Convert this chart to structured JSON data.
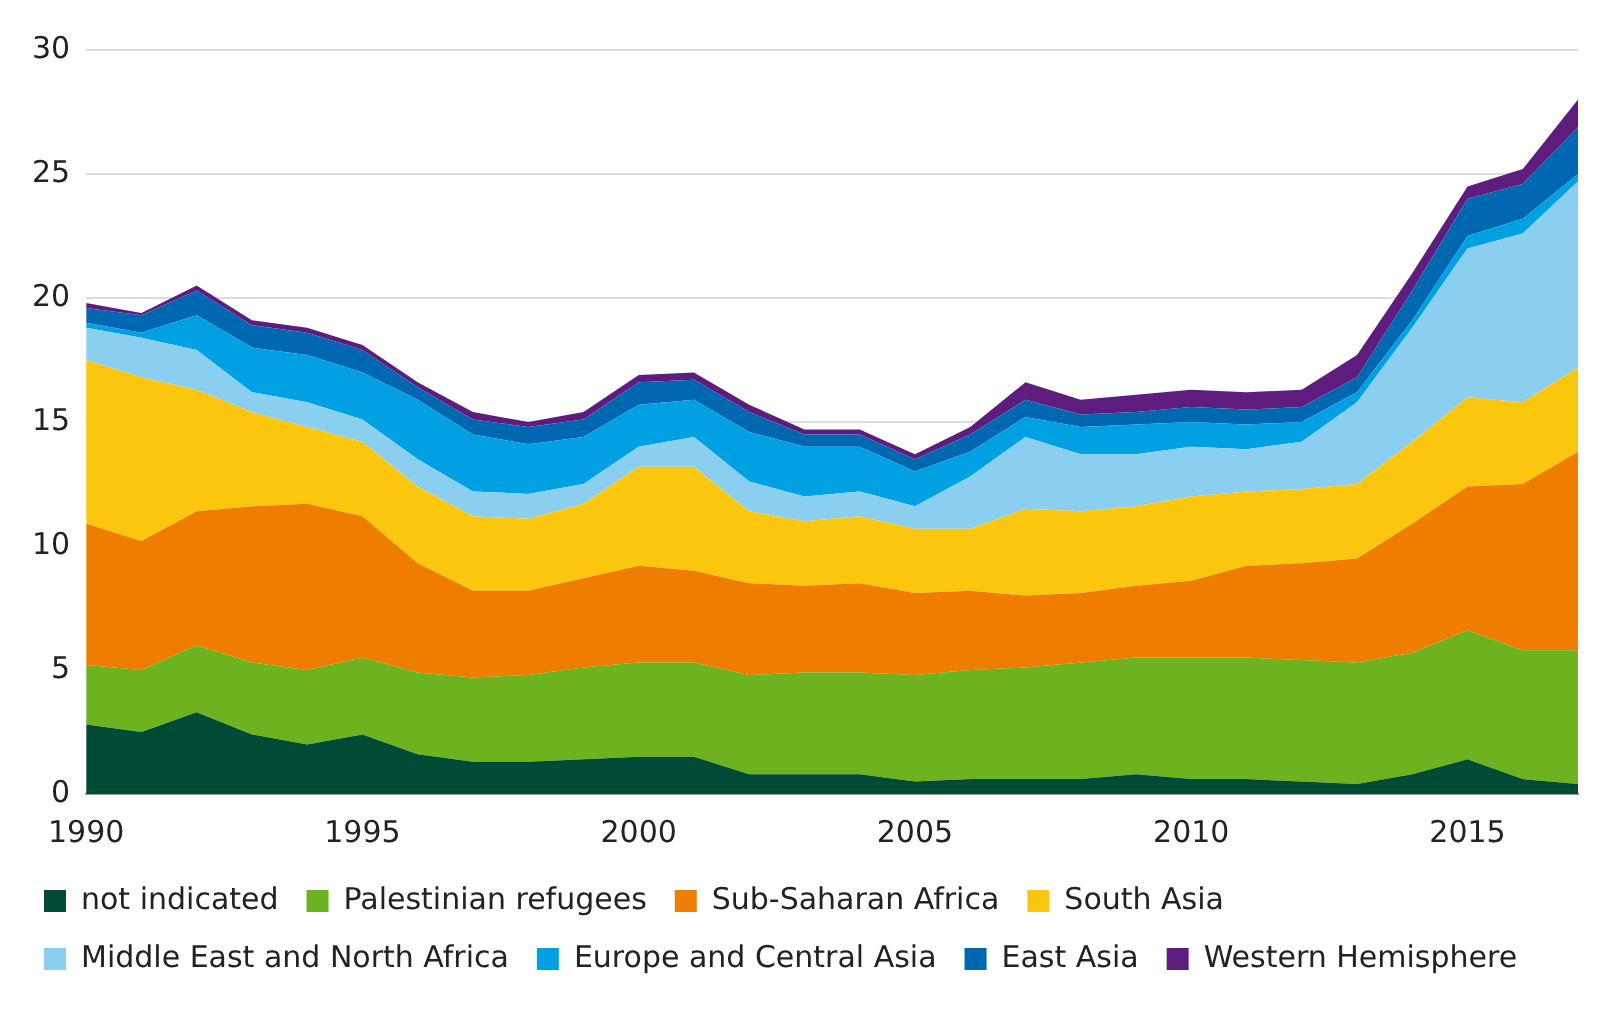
{
  "chart_data": {
    "type": "area",
    "stacked": true,
    "x": [
      1990,
      1991,
      1992,
      1993,
      1994,
      1995,
      1996,
      1997,
      1998,
      1999,
      2000,
      2001,
      2002,
      2003,
      2004,
      2005,
      2006,
      2007,
      2008,
      2009,
      2010,
      2011,
      2012,
      2013,
      2014,
      2015,
      2016,
      2017
    ],
    "series": [
      {
        "name": "not indicated",
        "color": "#004b35",
        "values": [
          2.8,
          2.5,
          3.3,
          2.4,
          2.0,
          2.4,
          1.6,
          1.3,
          1.3,
          1.4,
          1.5,
          1.5,
          0.8,
          0.8,
          0.8,
          0.5,
          0.6,
          0.6,
          0.6,
          0.8,
          0.6,
          0.6,
          0.5,
          0.4,
          0.8,
          1.4,
          0.6,
          0.4
        ]
      },
      {
        "name": "Palestinian refugees",
        "color": "#6db31f",
        "values": [
          2.4,
          2.5,
          2.7,
          2.9,
          3.0,
          3.1,
          3.3,
          3.4,
          3.5,
          3.7,
          3.8,
          3.8,
          4.0,
          4.1,
          4.1,
          4.3,
          4.4,
          4.5,
          4.7,
          4.7,
          4.9,
          4.9,
          4.9,
          4.9,
          4.9,
          5.2,
          5.2,
          5.4
        ]
      },
      {
        "name": "Sub-Saharan Africa",
        "color": "#ef7d00",
        "values": [
          5.7,
          5.2,
          5.4,
          6.3,
          6.7,
          5.7,
          4.4,
          3.5,
          3.4,
          3.6,
          3.9,
          3.7,
          3.7,
          3.5,
          3.6,
          3.3,
          3.2,
          2.9,
          2.8,
          2.9,
          3.1,
          3.7,
          3.9,
          4.2,
          5.2,
          5.8,
          6.7,
          8.0
        ]
      },
      {
        "name": "South Asia",
        "color": "#fbc70e",
        "values": [
          6.6,
          6.6,
          4.9,
          3.8,
          3.1,
          3.0,
          3.1,
          3.0,
          2.9,
          3.0,
          4.0,
          4.2,
          2.9,
          2.6,
          2.7,
          2.6,
          2.5,
          3.5,
          3.3,
          3.2,
          3.4,
          3.0,
          3.0,
          3.0,
          3.3,
          3.6,
          3.3,
          3.4
        ]
      },
      {
        "name": "Middle East and North Africa",
        "color": "#8bcff0",
        "values": [
          1.3,
          1.6,
          1.6,
          0.8,
          1.0,
          0.9,
          1.1,
          1.0,
          1.0,
          0.8,
          0.8,
          1.2,
          1.2,
          1.0,
          1.0,
          0.9,
          2.1,
          2.9,
          2.3,
          2.1,
          2.0,
          1.7,
          1.9,
          3.3,
          4.6,
          6.0,
          6.8,
          7.5
        ]
      },
      {
        "name": "Europe and Central Asia",
        "color": "#00a0e2",
        "values": [
          0.2,
          0.2,
          1.4,
          1.8,
          1.9,
          1.9,
          2.4,
          2.3,
          2.0,
          1.9,
          1.7,
          1.5,
          2.0,
          2.0,
          1.8,
          1.4,
          1.0,
          0.8,
          1.1,
          1.2,
          1.0,
          1.0,
          0.8,
          0.4,
          0.3,
          0.5,
          0.6,
          0.3
        ]
      },
      {
        "name": "East Asia",
        "color": "#0067b1",
        "values": [
          0.6,
          0.7,
          1.0,
          0.9,
          0.9,
          0.9,
          0.5,
          0.6,
          0.7,
          0.7,
          0.9,
          0.8,
          0.8,
          0.5,
          0.5,
          0.5,
          0.7,
          0.7,
          0.5,
          0.5,
          0.6,
          0.6,
          0.6,
          0.6,
          1.2,
          1.5,
          1.4,
          1.9
        ]
      },
      {
        "name": "Western Hemisphere",
        "color": "#5e1d7e",
        "values": [
          0.2,
          0.1,
          0.2,
          0.2,
          0.2,
          0.2,
          0.2,
          0.3,
          0.2,
          0.3,
          0.3,
          0.3,
          0.3,
          0.2,
          0.2,
          0.2,
          0.3,
          0.7,
          0.6,
          0.7,
          0.7,
          0.7,
          0.7,
          0.9,
          0.7,
          0.5,
          0.6,
          1.1
        ]
      }
    ],
    "xlim": [
      1990,
      2017
    ],
    "xticks": [
      1990,
      1995,
      2000,
      2005,
      2010,
      2015
    ],
    "ylim": [
      0,
      30
    ],
    "yticks": [
      0,
      5,
      10,
      15,
      20,
      25,
      30
    ],
    "grid": "y",
    "legend": "bottom"
  }
}
